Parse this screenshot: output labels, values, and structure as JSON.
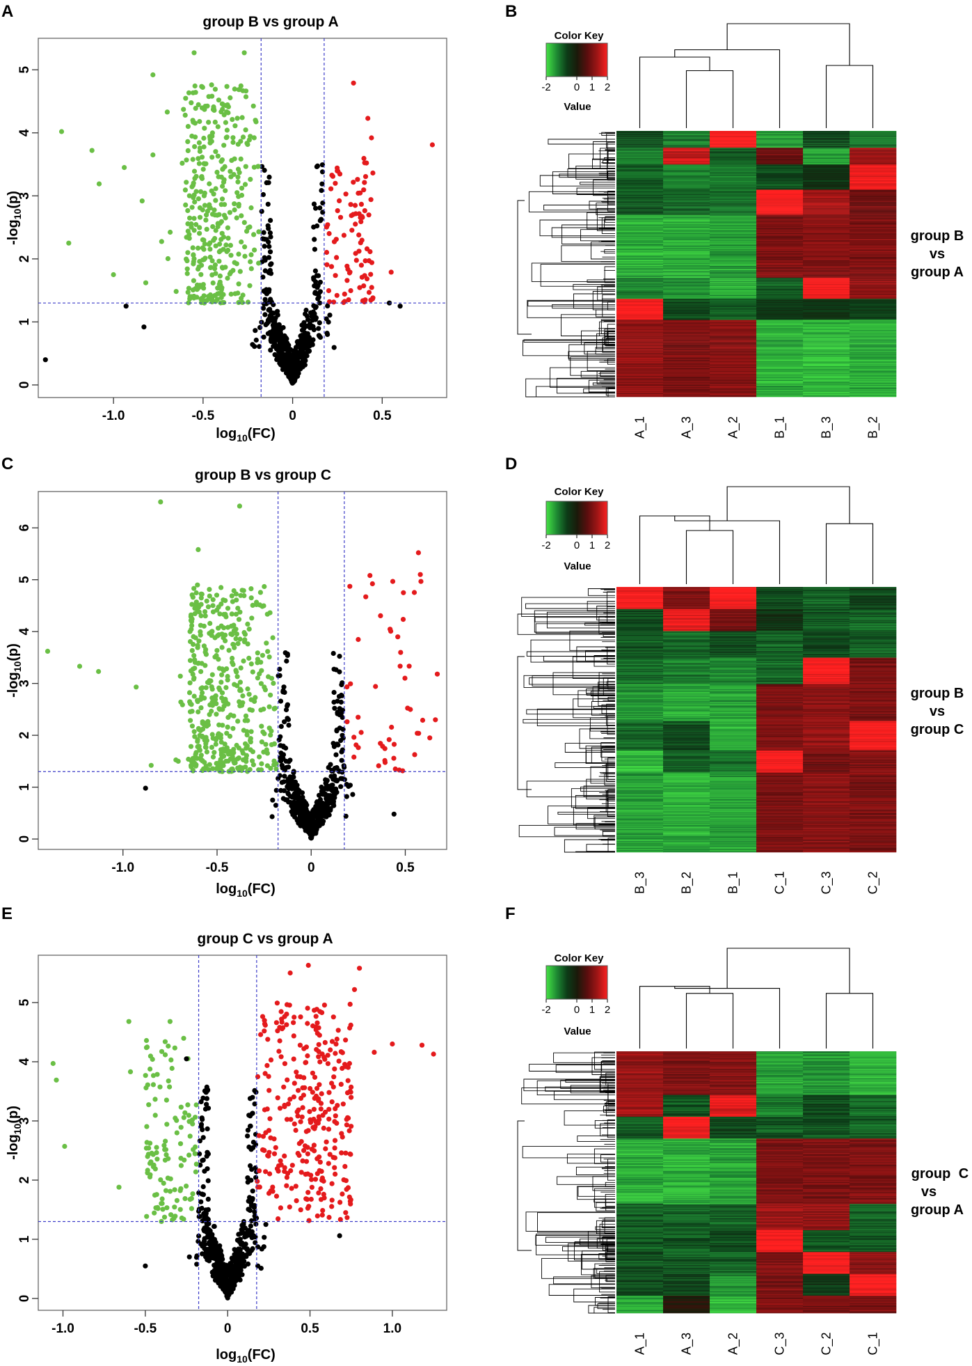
{
  "colors": {
    "green": "#6abf45",
    "red": "#e41a1c",
    "black": "#000000",
    "guide": "#3c3cc8"
  },
  "heatmap_palette": [
    "#44e044",
    "#1e8a33",
    "#0c3c18",
    "#1a1a0a",
    "#5a0e0e",
    "#a01616",
    "#ff2020"
  ],
  "chart_data": [
    {
      "panel": "A",
      "type": "scatter",
      "title": "group B vs group A",
      "xlabel": "log10(FC)",
      "ylabel": "-log10(p)",
      "xlim": [
        -1.42,
        0.86
      ],
      "ylim": [
        -0.2,
        5.5
      ],
      "xticks": [
        "-1.0",
        "-0.5",
        "0",
        "0.5"
      ],
      "xtick_values": [
        -1.0,
        -0.5,
        0,
        0.5
      ],
      "yticks": [
        "0",
        "1",
        "2",
        "3",
        "4",
        "5"
      ],
      "ytick_values": [
        0,
        1,
        2,
        3,
        4,
        5
      ],
      "fc_threshold": 0.176,
      "p_threshold": 1.3,
      "n_black": 540,
      "n_green": 360,
      "n_red": 90,
      "green_x_range": [
        -0.6,
        -0.18
      ],
      "red_x_range": [
        0.18,
        0.45
      ],
      "green_ymax": 4.8,
      "red_ymax": 3.6,
      "outliers": [
        {
          "x": -1.38,
          "y": 0.4,
          "c": "black"
        },
        {
          "x": -1.0,
          "y": 1.75,
          "c": "green"
        },
        {
          "x": -1.25,
          "y": 2.25,
          "c": "green"
        },
        {
          "x": -1.12,
          "y": 3.72,
          "c": "green"
        },
        {
          "x": -1.29,
          "y": 4.02,
          "c": "green"
        },
        {
          "x": -1.08,
          "y": 3.19,
          "c": "green"
        },
        {
          "x": -0.94,
          "y": 3.45,
          "c": "green"
        },
        {
          "x": -0.84,
          "y": 2.92,
          "c": "green"
        },
        {
          "x": -0.78,
          "y": 4.92,
          "c": "green"
        },
        {
          "x": -0.78,
          "y": 3.65,
          "c": "green"
        },
        {
          "x": -0.7,
          "y": 4.33,
          "c": "green"
        },
        {
          "x": -0.55,
          "y": 5.27,
          "c": "green"
        },
        {
          "x": -0.27,
          "y": 5.27,
          "c": "green"
        },
        {
          "x": -0.82,
          "y": 1.62,
          "c": "green"
        },
        {
          "x": -0.93,
          "y": 1.25,
          "c": "black"
        },
        {
          "x": -0.83,
          "y": 0.92,
          "c": "black"
        },
        {
          "x": 0.34,
          "y": 4.79,
          "c": "red"
        },
        {
          "x": 0.42,
          "y": 4.23,
          "c": "red"
        },
        {
          "x": 0.44,
          "y": 3.92,
          "c": "red"
        },
        {
          "x": 0.78,
          "y": 3.81,
          "c": "red"
        },
        {
          "x": 0.55,
          "y": 1.79,
          "c": "red"
        },
        {
          "x": 0.54,
          "y": 1.3,
          "c": "black"
        },
        {
          "x": 0.6,
          "y": 1.25,
          "c": "black"
        }
      ]
    },
    {
      "panel": "C",
      "type": "scatter",
      "title": "group B vs group C",
      "xlabel": "log10(FC)",
      "ylabel": "-log10(p)",
      "xlim": [
        -1.45,
        0.72
      ],
      "ylim": [
        -0.2,
        6.7
      ],
      "xticks": [
        "-1.0",
        "-0.5",
        "0",
        "0.5"
      ],
      "xtick_values": [
        -1.0,
        -0.5,
        0,
        0.5
      ],
      "yticks": [
        "0",
        "1",
        "2",
        "3",
        "4",
        "5",
        "6"
      ],
      "ytick_values": [
        0,
        1,
        2,
        3,
        4,
        5,
        6
      ],
      "fc_threshold": 0.176,
      "p_threshold": 1.3,
      "n_black": 560,
      "n_green": 460,
      "n_red": 45,
      "green_x_range": [
        -0.65,
        -0.18
      ],
      "red_x_range": [
        0.18,
        0.6
      ],
      "green_ymax": 4.9,
      "red_ymax": 5.2,
      "outliers": [
        {
          "x": -1.4,
          "y": 3.62,
          "c": "green"
        },
        {
          "x": -1.23,
          "y": 3.33,
          "c": "green"
        },
        {
          "x": -1.13,
          "y": 3.23,
          "c": "green"
        },
        {
          "x": -0.93,
          "y": 2.93,
          "c": "green"
        },
        {
          "x": -0.85,
          "y": 1.42,
          "c": "green"
        },
        {
          "x": -0.88,
          "y": 0.98,
          "c": "black"
        },
        {
          "x": -0.8,
          "y": 6.5,
          "c": "green"
        },
        {
          "x": -0.38,
          "y": 6.42,
          "c": "green"
        },
        {
          "x": -0.6,
          "y": 5.58,
          "c": "green"
        },
        {
          "x": 0.57,
          "y": 5.52,
          "c": "red"
        },
        {
          "x": 0.58,
          "y": 5.1,
          "c": "red"
        },
        {
          "x": 0.49,
          "y": 4.75,
          "c": "red"
        },
        {
          "x": 0.29,
          "y": 4.67,
          "c": "red"
        },
        {
          "x": 0.67,
          "y": 3.18,
          "c": "red"
        },
        {
          "x": 0.66,
          "y": 2.3,
          "c": "red"
        },
        {
          "x": 0.63,
          "y": 1.95,
          "c": "red"
        },
        {
          "x": 0.44,
          "y": 0.48,
          "c": "black"
        }
      ]
    },
    {
      "panel": "E",
      "type": "scatter",
      "title": "group C vs group A",
      "xlabel": "log10(FC)",
      "ylabel": "-log10(p)",
      "xlim": [
        -1.15,
        1.33
      ],
      "ylim": [
        -0.2,
        5.8
      ],
      "xticks": [
        "-1.0",
        "-0.5",
        "0",
        "0.5",
        "1.0"
      ],
      "xtick_values": [
        -1.0,
        -0.5,
        0,
        0.5,
        1.0
      ],
      "yticks": [
        "0",
        "1",
        "2",
        "3",
        "4",
        "5"
      ],
      "ytick_values": [
        0,
        1,
        2,
        3,
        4,
        5
      ],
      "fc_threshold": 0.176,
      "p_threshold": 1.3,
      "n_black": 620,
      "n_green": 120,
      "n_red": 300,
      "green_x_range": [
        -0.5,
        -0.18
      ],
      "red_x_range": [
        0.18,
        0.75
      ],
      "green_ymax": 4.4,
      "red_ymax": 5.0,
      "outliers": [
        {
          "x": -1.06,
          "y": 3.97,
          "c": "green"
        },
        {
          "x": -1.04,
          "y": 3.69,
          "c": "green"
        },
        {
          "x": -0.99,
          "y": 2.57,
          "c": "green"
        },
        {
          "x": -0.6,
          "y": 4.68,
          "c": "green"
        },
        {
          "x": -0.35,
          "y": 4.68,
          "c": "green"
        },
        {
          "x": -0.59,
          "y": 3.83,
          "c": "green"
        },
        {
          "x": -0.66,
          "y": 1.88,
          "c": "green"
        },
        {
          "x": -0.5,
          "y": 0.55,
          "c": "black"
        },
        {
          "x": 0.49,
          "y": 5.63,
          "c": "red"
        },
        {
          "x": 0.8,
          "y": 5.58,
          "c": "red"
        },
        {
          "x": 0.38,
          "y": 5.5,
          "c": "red"
        },
        {
          "x": 0.77,
          "y": 5.22,
          "c": "red"
        },
        {
          "x": 1.0,
          "y": 4.3,
          "c": "red"
        },
        {
          "x": 1.18,
          "y": 4.28,
          "c": "red"
        },
        {
          "x": 1.25,
          "y": 4.13,
          "c": "red"
        },
        {
          "x": 0.89,
          "y": 4.16,
          "c": "red"
        },
        {
          "x": 0.68,
          "y": 1.06,
          "c": "black"
        },
        {
          "x": -0.25,
          "y": 4.05,
          "c": "black"
        }
      ]
    },
    {
      "panel": "B",
      "type": "heatmap",
      "side_label": [
        "group B",
        "vs",
        "group A"
      ],
      "columns": [
        "A_1",
        "A_3",
        "A_2",
        "B_1",
        "B_3",
        "B_2"
      ],
      "key_title": "Color Key",
      "key_label": "Value",
      "key_ticks": [
        "-2",
        "0",
        "1",
        "2"
      ],
      "key_tick_values": [
        -2,
        0,
        1,
        2
      ],
      "col_dendrogram": {
        "leaves": 6,
        "merges": [
          [
            1,
            2,
            0.55
          ],
          [
            0,
            "a",
            0.68
          ],
          [
            4,
            5,
            0.6
          ],
          [
            3,
            "b",
            0.75
          ],
          [
            "c",
            "d",
            1.0
          ]
        ]
      },
      "row_blocks": [
        {
          "rows": 24,
          "v": [
            -0.8,
            -1.2,
            2.0,
            -1.5,
            -0.8,
            -1.2
          ]
        },
        {
          "rows": 24,
          "v": [
            -1.2,
            1.6,
            -0.9,
            0.8,
            -1.5,
            1.3
          ]
        },
        {
          "rows": 36,
          "v": [
            -1.0,
            -1.2,
            -1.2,
            -0.8,
            -0.5,
            1.9
          ]
        },
        {
          "rows": 36,
          "v": [
            -0.9,
            -1.0,
            -1.1,
            2.0,
            1.3,
            0.9
          ]
        },
        {
          "rows": 90,
          "v": [
            -1.6,
            -1.6,
            -1.5,
            1.0,
            1.1,
            1.0
          ]
        },
        {
          "rows": 30,
          "v": [
            -1.3,
            -1.4,
            -1.6,
            -1.0,
            2.0,
            1.2
          ]
        },
        {
          "rows": 30,
          "v": [
            2.0,
            -0.8,
            -1.0,
            -0.6,
            -0.5,
            -0.7
          ]
        },
        {
          "rows": 110,
          "v": [
            1.2,
            1.0,
            1.1,
            -1.6,
            -1.7,
            -1.6
          ]
        }
      ]
    },
    {
      "panel": "D",
      "type": "heatmap",
      "side_label": [
        "group B",
        "vs",
        "group C"
      ],
      "columns": [
        "B_3",
        "B_2",
        "B_1",
        "C_1",
        "C_3",
        "C_2"
      ],
      "key_title": "Color Key",
      "key_label": "Value",
      "key_ticks": [
        "-2",
        "0",
        "1",
        "2"
      ],
      "key_tick_values": [
        -2,
        0,
        1,
        2
      ],
      "col_dendrogram": {
        "leaves": 6,
        "merges": [
          [
            1,
            2,
            0.55
          ],
          [
            0,
            "a",
            0.7
          ],
          [
            4,
            5,
            0.62
          ],
          [
            3,
            "b",
            0.65
          ],
          [
            "c",
            "d",
            1.0
          ]
        ]
      },
      "row_blocks": [
        {
          "rows": 30,
          "v": [
            2.0,
            1.0,
            2.0,
            -0.8,
            -1.0,
            -0.7
          ]
        },
        {
          "rows": 30,
          "v": [
            -0.8,
            1.8,
            1.0,
            -0.5,
            -0.9,
            -1.0
          ]
        },
        {
          "rows": 36,
          "v": [
            -0.9,
            -1.0,
            -0.8,
            -1.0,
            -0.8,
            -0.9
          ]
        },
        {
          "rows": 36,
          "v": [
            -1.1,
            -1.2,
            -1.3,
            -1.0,
            2.0,
            1.0
          ]
        },
        {
          "rows": 50,
          "v": [
            -1.4,
            -1.6,
            -1.5,
            1.0,
            1.1,
            1.0
          ]
        },
        {
          "rows": 40,
          "v": [
            -1.0,
            -0.8,
            -1.6,
            1.0,
            1.2,
            2.0
          ]
        },
        {
          "rows": 30,
          "v": [
            -1.7,
            -1.0,
            -1.1,
            2.0,
            0.9,
            1.0
          ]
        },
        {
          "rows": 108,
          "v": [
            -1.5,
            -1.6,
            -1.5,
            1.0,
            1.1,
            1.0
          ]
        }
      ]
    },
    {
      "panel": "F",
      "type": "heatmap",
      "side_label": [
        "group",
        "C",
        "vs",
        "group A"
      ],
      "columns": [
        "A_1",
        "A_3",
        "A_2",
        "C_3",
        "C_2",
        "C_1"
      ],
      "key_title": "Color Key",
      "key_label": "Value",
      "key_ticks": [
        "-2",
        "0",
        "1",
        "2"
      ],
      "key_tick_values": [
        -2,
        0,
        1,
        2
      ],
      "col_dendrogram": {
        "leaves": 6,
        "merges": [
          [
            1,
            2,
            0.55
          ],
          [
            0,
            "a",
            0.62
          ],
          [
            4,
            5,
            0.55
          ],
          [
            3,
            "b",
            0.6
          ],
          [
            "c",
            "d",
            1.0
          ]
        ]
      },
      "row_blocks": [
        {
          "rows": 50,
          "v": [
            1.2,
            1.0,
            1.1,
            -1.5,
            -1.4,
            -1.6
          ]
        },
        {
          "rows": 25,
          "v": [
            1.3,
            -0.9,
            1.8,
            -1.2,
            -0.8,
            -1.0
          ]
        },
        {
          "rows": 25,
          "v": [
            -0.9,
            2.0,
            -0.7,
            -0.9,
            -0.9,
            -1.0
          ]
        },
        {
          "rows": 75,
          "v": [
            -1.6,
            -1.6,
            -1.5,
            1.0,
            1.0,
            1.0
          ]
        },
        {
          "rows": 30,
          "v": [
            -0.9,
            -1.0,
            -1.0,
            1.3,
            1.2,
            -1.0
          ]
        },
        {
          "rows": 25,
          "v": [
            -0.9,
            -0.9,
            -0.8,
            2.0,
            -0.9,
            -0.9
          ]
        },
        {
          "rows": 25,
          "v": [
            -0.8,
            -0.9,
            -1.0,
            1.0,
            2.0,
            1.2
          ]
        },
        {
          "rows": 25,
          "v": [
            -0.8,
            -0.7,
            -1.4,
            1.0,
            -0.6,
            2.0
          ]
        },
        {
          "rows": 20,
          "v": [
            -1.6,
            0.1,
            -1.7,
            1.0,
            0.9,
            1.0
          ]
        }
      ]
    }
  ],
  "panel_letters": [
    "A",
    "B",
    "C",
    "D",
    "E",
    "F"
  ]
}
